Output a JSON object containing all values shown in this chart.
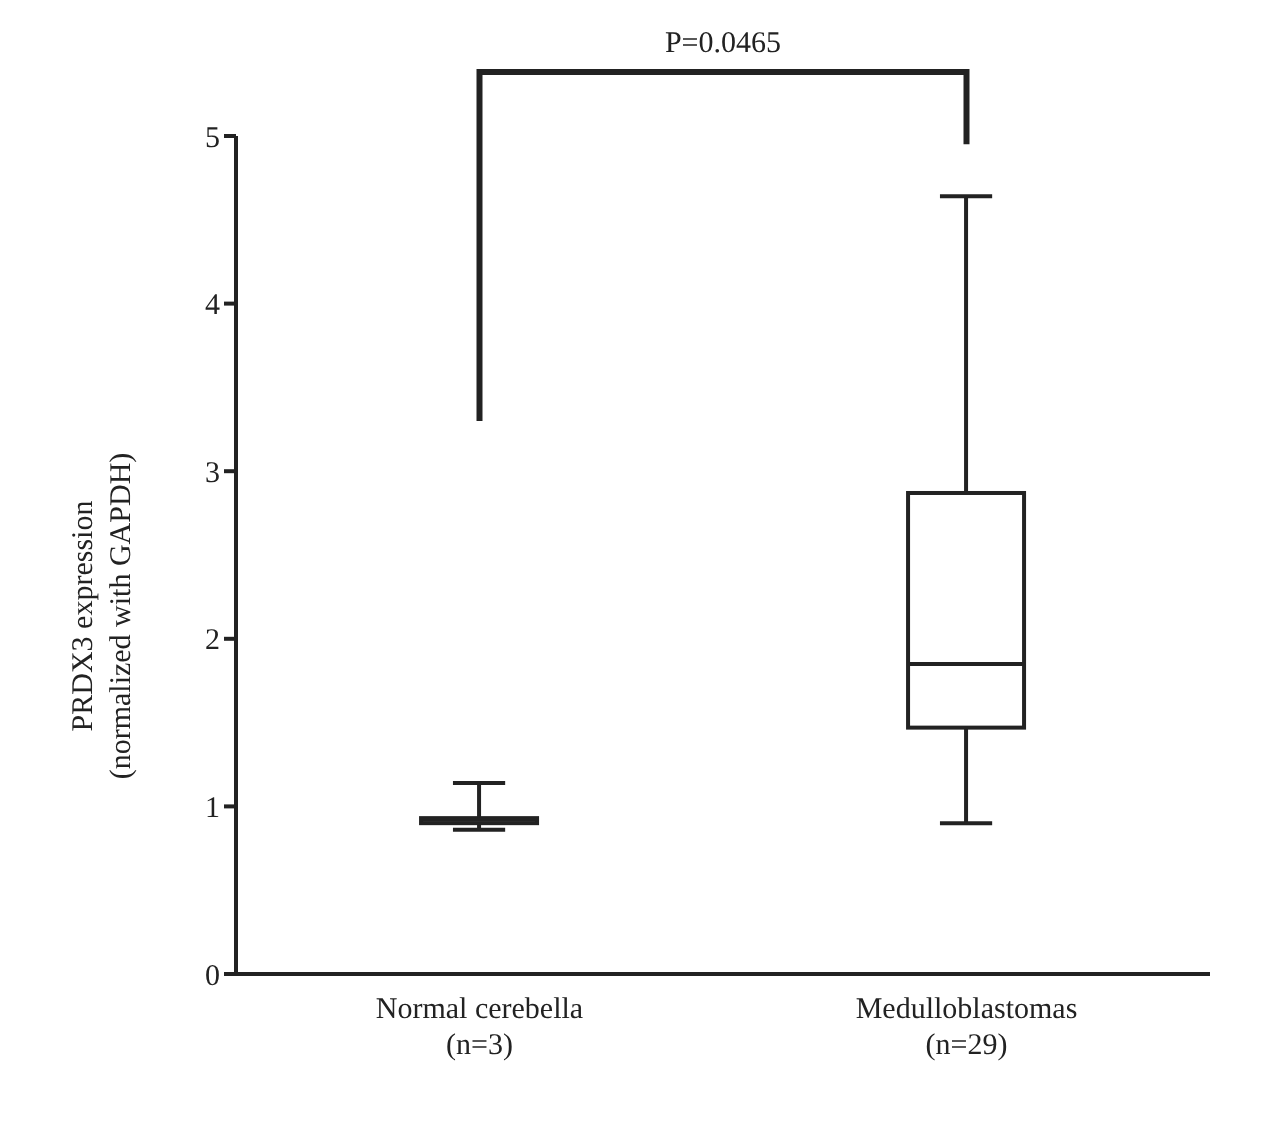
{
  "chart_data": {
    "type": "box",
    "ylabel": "PRDX3 expression\n(normalized with GAPDH)",
    "categories": [
      "Normal cerebella\n(n=3)",
      "Medulloblastomas\n(n=29)"
    ],
    "boxes": [
      {
        "low": 0.86,
        "q1": 0.9,
        "median": 0.92,
        "q3": 0.93,
        "high": 1.14
      },
      {
        "low": 0.9,
        "q1": 1.47,
        "median": 1.85,
        "q3": 2.87,
        "high": 4.64
      }
    ],
    "ylim": [
      0,
      5
    ],
    "yticks": [
      0,
      1,
      2,
      3,
      4,
      5
    ],
    "annotations": [
      "P=0.0465"
    ]
  }
}
